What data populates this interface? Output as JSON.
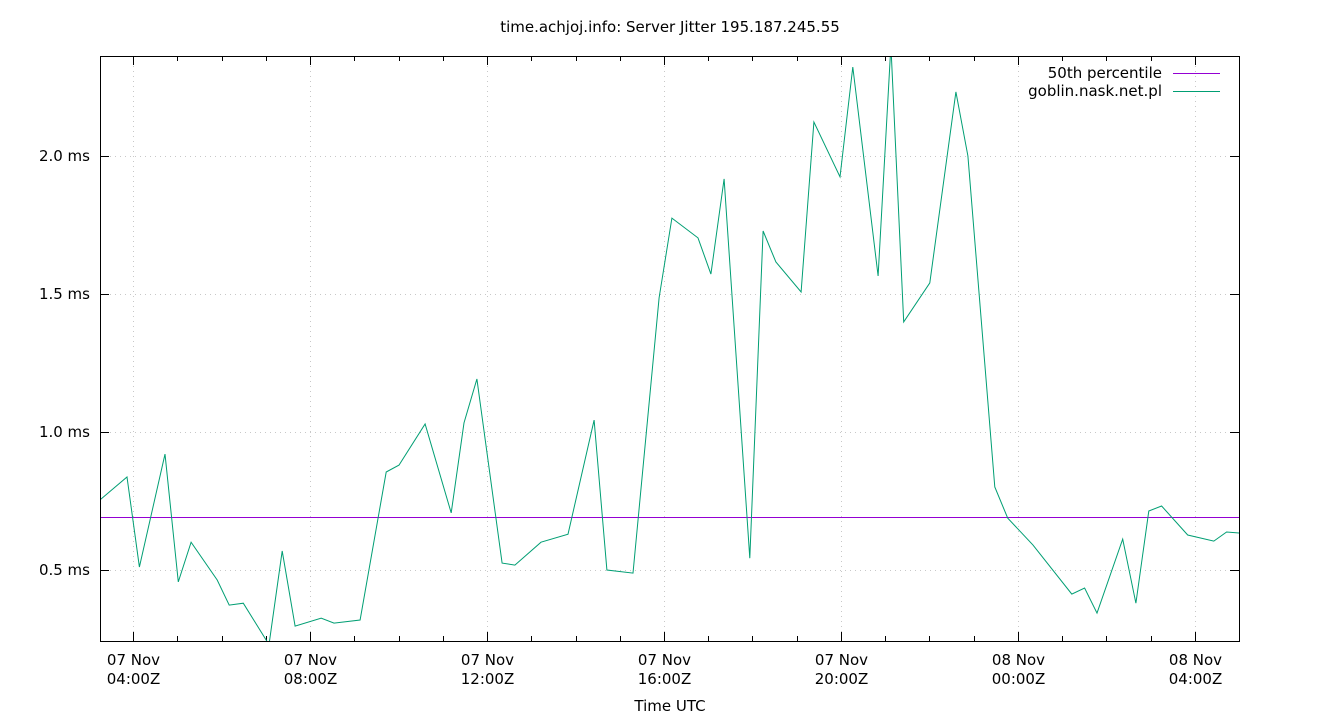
{
  "title": "time.achjoj.info: Server Jitter 195.187.245.55",
  "colors": {
    "median": "#9400d3",
    "series": "#009e73",
    "grid": "#c8c8c8",
    "axis": "#000000"
  },
  "legend": [
    {
      "label": "50th percentile",
      "color": "#9400d3"
    },
    {
      "label": "goblin.nask.net.pl",
      "color": "#009e73"
    }
  ],
  "chart_data": {
    "type": "line",
    "title": "time.achjoj.info: Server Jitter 195.187.245.55",
    "xlabel": "Time UTC",
    "ylabel": "",
    "x_unit": "hours since 07 Nov 00:00Z",
    "xlim": [
      3.25,
      29.0
    ],
    "ylim": [
      0.243,
      2.362
    ],
    "grid": true,
    "legend_position": "top-right",
    "yticks": [
      {
        "value": 0.5,
        "label": "0.5 ms"
      },
      {
        "value": 1.0,
        "label": "1.0 ms"
      },
      {
        "value": 1.5,
        "label": "1.5 ms"
      },
      {
        "value": 2.0,
        "label": "2.0 ms"
      }
    ],
    "xticks": [
      {
        "value": 4,
        "label": [
          "07 Nov",
          "04:00Z"
        ]
      },
      {
        "value": 8,
        "label": [
          "07 Nov",
          "08:00Z"
        ]
      },
      {
        "value": 12,
        "label": [
          "07 Nov",
          "12:00Z"
        ]
      },
      {
        "value": 16,
        "label": [
          "07 Nov",
          "16:00Z"
        ]
      },
      {
        "value": 20,
        "label": [
          "07 Nov",
          "20:00Z"
        ]
      },
      {
        "value": 24,
        "label": [
          "08 Nov",
          "00:00Z"
        ]
      },
      {
        "value": 28,
        "label": [
          "08 Nov",
          "04:00Z"
        ]
      }
    ],
    "series": [
      {
        "name": "50th percentile",
        "type": "hline",
        "value": 0.692
      },
      {
        "name": "goblin.nask.net.pl",
        "x": [
          3.25,
          3.86,
          4.14,
          4.72,
          5.02,
          5.31,
          5.9,
          6.17,
          6.49,
          7.07,
          7.37,
          7.66,
          8.25,
          8.54,
          9.13,
          9.72,
          10.01,
          10.6,
          11.19,
          11.48,
          11.77,
          12.34,
          12.63,
          13.22,
          13.83,
          14.42,
          14.71,
          15.3,
          15.89,
          16.18,
          16.77,
          17.06,
          17.36,
          17.94,
          18.24,
          18.53,
          19.1,
          19.39,
          19.98,
          20.27,
          20.84,
          21.13,
          21.42,
          22.01,
          22.6,
          22.87,
          23.48,
          23.77,
          24.34,
          25.22,
          25.51,
          25.79,
          26.37,
          26.67,
          26.96,
          27.25,
          27.84,
          28.43,
          28.72,
          29.02
        ],
        "values": [
          0.754,
          0.837,
          0.511,
          0.92,
          0.457,
          0.601,
          0.464,
          0.373,
          0.38,
          0.23,
          0.569,
          0.297,
          0.326,
          0.308,
          0.319,
          0.855,
          0.88,
          1.029,
          0.707,
          1.033,
          1.192,
          0.525,
          0.518,
          0.601,
          0.63,
          1.043,
          0.5,
          0.489,
          1.486,
          1.775,
          1.703,
          1.572,
          1.917,
          0.543,
          1.728,
          1.616,
          1.507,
          2.123,
          1.924,
          2.322,
          1.565,
          2.4,
          1.399,
          1.54,
          2.232,
          2.0,
          0.801,
          0.688,
          0.591,
          0.413,
          0.435,
          0.344,
          0.612,
          0.38,
          0.714,
          0.732,
          0.627,
          0.605,
          0.638,
          0.634
        ]
      }
    ]
  }
}
